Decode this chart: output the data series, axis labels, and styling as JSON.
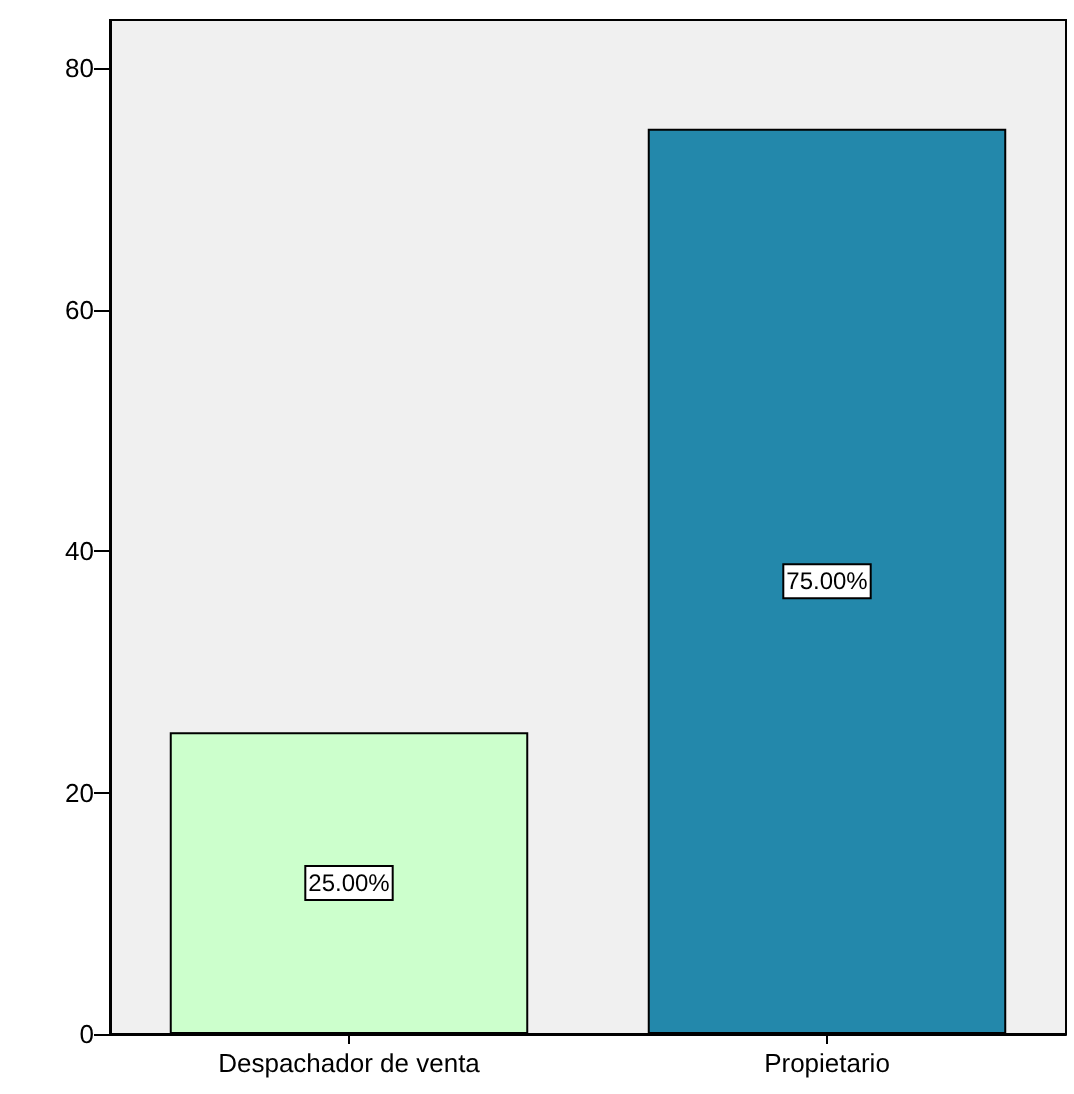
{
  "chart_data": {
    "type": "bar",
    "categories": [
      "Despachador de venta",
      "Propietario"
    ],
    "values": [
      25,
      75
    ],
    "colors": [
      "#ccffcc",
      "#2388ab"
    ],
    "value_labels": [
      "25.00%",
      "75.00%"
    ],
    "ylim": [
      0,
      84
    ],
    "yticks": [
      0,
      20,
      40,
      60,
      80
    ],
    "grid": false
  }
}
